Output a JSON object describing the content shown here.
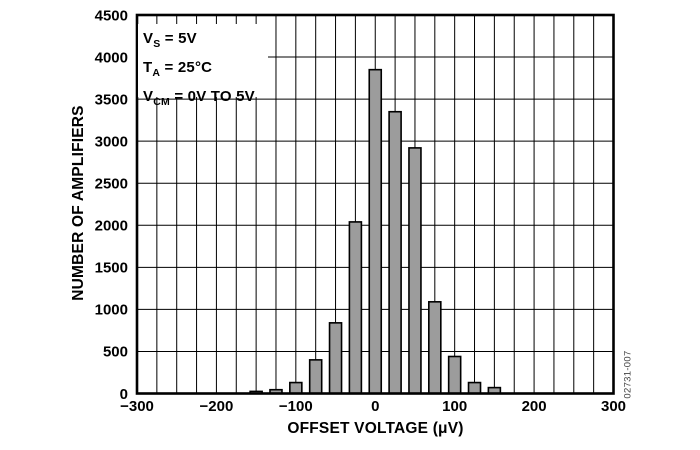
{
  "figure": {
    "background": "#ffffff",
    "watermark": "02731-007"
  },
  "annotation": {
    "lines": [
      {
        "pre": "V",
        "sub": "S",
        "post": " = 5V"
      },
      {
        "pre": "T",
        "sub": "A",
        "post": " = 25°C"
      },
      {
        "pre": "V",
        "sub": "CM",
        "post": " = 0V TO 5V"
      }
    ]
  },
  "chart_data": {
    "type": "bar",
    "title": "",
    "xlabel": "OFFSET VOLTAGE (μV)",
    "ylabel": "NUMBER OF AMPLIFIERS",
    "categories": [
      -150,
      -125,
      -100,
      -75,
      -50,
      -25,
      0,
      25,
      50,
      75,
      100,
      125,
      150
    ],
    "values": [
      25,
      45,
      130,
      400,
      840,
      2040,
      3850,
      3350,
      2920,
      1090,
      440,
      130,
      70
    ],
    "xlim": [
      -300,
      300
    ],
    "ylim": [
      0,
      4500
    ],
    "x_grid_step": 25,
    "y_grid_step": 500,
    "grid": true,
    "legend": "none",
    "x_ticks": [
      {
        "value": -300,
        "label": "−300"
      },
      {
        "value": -200,
        "label": "−200"
      },
      {
        "value": -100,
        "label": "−100"
      },
      {
        "value": 0,
        "label": "0"
      },
      {
        "value": 100,
        "label": "100"
      },
      {
        "value": 200,
        "label": "200"
      },
      {
        "value": 300,
        "label": "300"
      }
    ],
    "y_ticks": [
      {
        "value": 0,
        "label": "0"
      },
      {
        "value": 500,
        "label": "500"
      },
      {
        "value": 1000,
        "label": "1000"
      },
      {
        "value": 1500,
        "label": "1500"
      },
      {
        "value": 2000,
        "label": "2000"
      },
      {
        "value": 2500,
        "label": "2500"
      },
      {
        "value": 3000,
        "label": "3000"
      },
      {
        "value": 3500,
        "label": "3500"
      },
      {
        "value": 4000,
        "label": "4000"
      },
      {
        "value": 4500,
        "label": "4500"
      }
    ],
    "bar_color": "#9C9C9C",
    "bar_edge_color": "#000000",
    "grid_color": "#000000",
    "border_color": "#000000"
  }
}
